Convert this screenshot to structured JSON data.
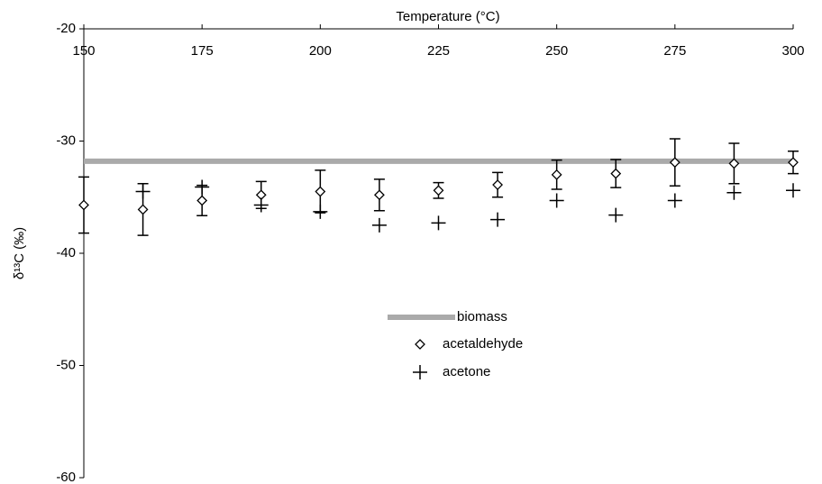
{
  "chart_data": {
    "type": "scatter",
    "xlabel": "Temperature (°C)",
    "ylabel": "δ¹³C (‰)",
    "xlim": [
      150,
      300
    ],
    "xticks": [
      150,
      175,
      200,
      225,
      250,
      275,
      300
    ],
    "ylim": [
      -60,
      -20
    ],
    "yticks": [
      -20,
      -30,
      -40,
      -50,
      -60
    ],
    "x": [
      150,
      162.5,
      175,
      187.5,
      200,
      212.5,
      225,
      237.5,
      250,
      262.5,
      275,
      287.5,
      300
    ],
    "reference_line": {
      "name": "biomass",
      "value": -31.8,
      "color": "#aaaaaa"
    },
    "series": [
      {
        "name": "acetaldehyde",
        "marker": "diamond",
        "color": "#000000",
        "values": [
          -35.7,
          -36.1,
          -35.3,
          -34.8,
          -34.5,
          -34.8,
          -34.4,
          -33.9,
          -33.0,
          -32.9,
          -31.9,
          -32.0,
          -31.9
        ],
        "errors": [
          2.5,
          2.3,
          1.35,
          1.2,
          1.9,
          1.4,
          0.7,
          1.1,
          1.3,
          1.25,
          2.1,
          1.8,
          1.0
        ]
      },
      {
        "name": "acetone",
        "marker": "plus",
        "color": "#000000",
        "values": [
          null,
          -34.5,
          -34.1,
          -35.7,
          -36.3,
          -37.5,
          -37.3,
          -37.0,
          -35.3,
          -36.6,
          -35.3,
          -34.6,
          -34.4
        ]
      }
    ]
  }
}
